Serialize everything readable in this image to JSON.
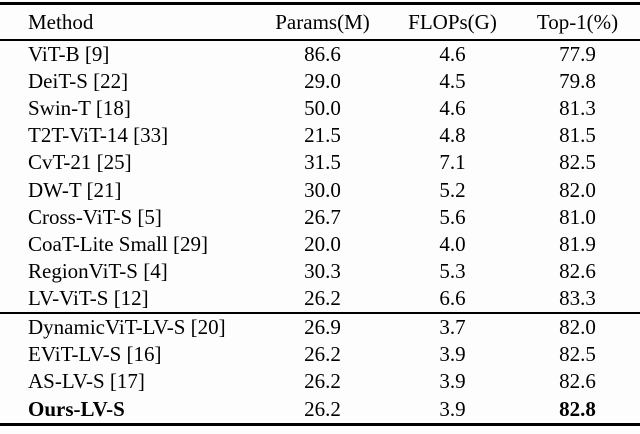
{
  "colors": {
    "background": "#fdfdfd",
    "text": "#000000",
    "rule": "#000000"
  },
  "header": {
    "method": "Method",
    "params": "Params(M)",
    "flops": "FLOPs(G)",
    "top1": "Top-1(%)"
  },
  "section1": [
    {
      "method": "ViT-B [9]",
      "params": "86.6",
      "flops": "4.6",
      "top1": "77.9"
    },
    {
      "method": "DeiT-S [22]",
      "params": "29.0",
      "flops": "4.5",
      "top1": "79.8"
    },
    {
      "method": "Swin-T [18]",
      "params": "50.0",
      "flops": "4.6",
      "top1": "81.3"
    },
    {
      "method": "T2T-ViT-14 [33]",
      "params": "21.5",
      "flops": "4.8",
      "top1": "81.5"
    },
    {
      "method": "CvT-21 [25]",
      "params": "31.5",
      "flops": "7.1",
      "top1": "82.5"
    },
    {
      "method": "DW-T [21]",
      "params": "30.0",
      "flops": "5.2",
      "top1": "82.0"
    },
    {
      "method": "Cross-ViT-S [5]",
      "params": "26.7",
      "flops": "5.6",
      "top1": "81.0"
    },
    {
      "method": "CoaT-Lite Small [29]",
      "params": "20.0",
      "flops": "4.0",
      "top1": "81.9"
    },
    {
      "method": "RegionViT-S [4]",
      "params": "30.3",
      "flops": "5.3",
      "top1": "82.6"
    },
    {
      "method": "LV-ViT-S [12]",
      "params": "26.2",
      "flops": "6.6",
      "top1": "83.3"
    }
  ],
  "section2": [
    {
      "method": "DynamicViT-LV-S [20]",
      "params": "26.9",
      "flops": "3.7",
      "top1": "82.0"
    },
    {
      "method": "EViT-LV-S [16]",
      "params": "26.2",
      "flops": "3.9",
      "top1": "82.5"
    },
    {
      "method": "AS-LV-S [17]",
      "params": "26.2",
      "flops": "3.9",
      "top1": "82.6"
    },
    {
      "method": "Ours-LV-S",
      "params": "26.2",
      "flops": "3.9",
      "top1": "82.8",
      "bold": true
    }
  ]
}
